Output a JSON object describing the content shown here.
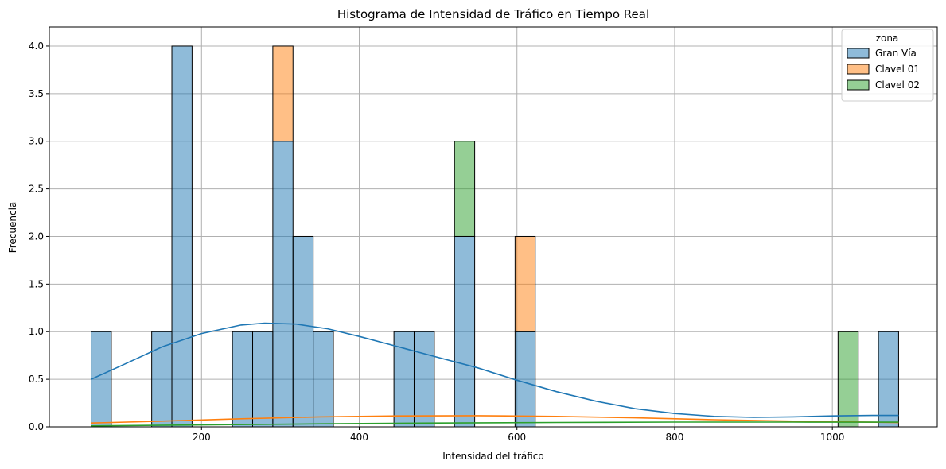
{
  "chart_data": {
    "type": "histogram",
    "title": "Histograma de Intensidad de Tráfico en Tiempo Real",
    "xlabel": "Intensidad del tráfico",
    "ylabel": "Frecuencia",
    "xlim": [
      7,
      1133
    ],
    "ylim": [
      0,
      4.2
    ],
    "x_ticks": [
      200,
      400,
      600,
      800,
      1000
    ],
    "y_ticks": [
      0.0,
      0.5,
      1.0,
      1.5,
      2.0,
      2.5,
      3.0,
      3.5,
      4.0
    ],
    "grid": true,
    "legend": {
      "title": "zona",
      "placement": "top-right"
    },
    "bin_width": 25.6,
    "series": [
      {
        "name": "Gran Vía",
        "color": "#1f77b4",
        "bins": [
          {
            "x0": 60.0,
            "x1": 85.6,
            "count": 1
          },
          {
            "x0": 136.8,
            "x1": 162.4,
            "count": 1
          },
          {
            "x0": 162.4,
            "x1": 188.0,
            "count": 4
          },
          {
            "x0": 239.2,
            "x1": 264.8,
            "count": 1
          },
          {
            "x0": 264.8,
            "x1": 290.4,
            "count": 1
          },
          {
            "x0": 290.4,
            "x1": 316.0,
            "count": 3
          },
          {
            "x0": 316.0,
            "x1": 341.6,
            "count": 2
          },
          {
            "x0": 341.6,
            "x1": 367.2,
            "count": 1
          },
          {
            "x0": 444.0,
            "x1": 469.6,
            "count": 1
          },
          {
            "x0": 469.6,
            "x1": 495.2,
            "count": 1
          },
          {
            "x0": 520.8,
            "x1": 546.4,
            "count": 2
          },
          {
            "x0": 597.6,
            "x1": 623.2,
            "count": 1
          },
          {
            "x0": 1058.4,
            "x1": 1084.0,
            "count": 1
          }
        ],
        "kde": [
          [
            60,
            0.5
          ],
          [
            100,
            0.65
          ],
          [
            150,
            0.84
          ],
          [
            200,
            0.98
          ],
          [
            250,
            1.07
          ],
          [
            280,
            1.09
          ],
          [
            320,
            1.08
          ],
          [
            360,
            1.03
          ],
          [
            400,
            0.95
          ],
          [
            450,
            0.84
          ],
          [
            500,
            0.73
          ],
          [
            550,
            0.62
          ],
          [
            600,
            0.49
          ],
          [
            650,
            0.37
          ],
          [
            700,
            0.27
          ],
          [
            750,
            0.19
          ],
          [
            800,
            0.14
          ],
          [
            850,
            0.11
          ],
          [
            900,
            0.1
          ],
          [
            950,
            0.105
          ],
          [
            1000,
            0.115
          ],
          [
            1050,
            0.12
          ],
          [
            1084,
            0.12
          ]
        ]
      },
      {
        "name": "Clavel 01",
        "color": "#ff7f0e",
        "bins": [
          {
            "x0": 290.4,
            "x1": 316.0,
            "count": 1
          },
          {
            "x0": 597.6,
            "x1": 623.2,
            "count": 1
          }
        ],
        "kde": [
          [
            60,
            0.04
          ],
          [
            150,
            0.06
          ],
          [
            250,
            0.085
          ],
          [
            350,
            0.105
          ],
          [
            450,
            0.115
          ],
          [
            550,
            0.118
          ],
          [
            650,
            0.11
          ],
          [
            750,
            0.095
          ],
          [
            850,
            0.075
          ],
          [
            950,
            0.06
          ],
          [
            1084,
            0.045
          ]
        ]
      },
      {
        "name": "Clavel 02",
        "color": "#2ca02c",
        "bins": [
          {
            "x0": 520.8,
            "x1": 546.4,
            "count": 1
          },
          {
            "x0": 1007.2,
            "x1": 1032.8,
            "count": 1
          }
        ],
        "kde": [
          [
            60,
            0.01
          ],
          [
            200,
            0.02
          ],
          [
            350,
            0.032
          ],
          [
            500,
            0.04
          ],
          [
            650,
            0.046
          ],
          [
            800,
            0.05
          ],
          [
            950,
            0.05
          ],
          [
            1084,
            0.049
          ]
        ]
      }
    ]
  }
}
